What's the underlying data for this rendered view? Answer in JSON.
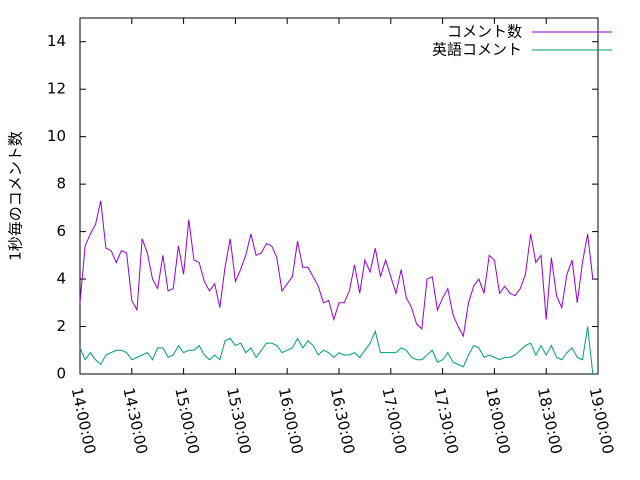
{
  "chart_data": {
    "type": "line",
    "ylabel": "1秒毎のコメント数",
    "x": [
      "14:00:00",
      "14:03:00",
      "14:06:00",
      "14:09:00",
      "14:12:00",
      "14:15:00",
      "14:18:00",
      "14:21:00",
      "14:24:00",
      "14:27:00",
      "14:30:00",
      "14:33:00",
      "14:36:00",
      "14:39:00",
      "14:42:00",
      "14:45:00",
      "14:48:00",
      "14:51:00",
      "14:54:00",
      "14:57:00",
      "15:00:00",
      "15:03:00",
      "15:06:00",
      "15:09:00",
      "15:12:00",
      "15:15:00",
      "15:18:00",
      "15:21:00",
      "15:24:00",
      "15:27:00",
      "15:30:00",
      "15:33:00",
      "15:36:00",
      "15:39:00",
      "15:42:00",
      "15:45:00",
      "15:48:00",
      "15:51:00",
      "15:54:00",
      "15:57:00",
      "16:00:00",
      "16:03:00",
      "16:06:00",
      "16:09:00",
      "16:12:00",
      "16:15:00",
      "16:18:00",
      "16:21:00",
      "16:24:00",
      "16:27:00",
      "16:30:00",
      "16:33:00",
      "16:36:00",
      "16:39:00",
      "16:42:00",
      "16:45:00",
      "16:48:00",
      "16:51:00",
      "16:54:00",
      "16:57:00",
      "17:00:00",
      "17:03:00",
      "17:06:00",
      "17:09:00",
      "17:12:00",
      "17:15:00",
      "17:18:00",
      "17:21:00",
      "17:24:00",
      "17:27:00",
      "17:30:00",
      "17:33:00",
      "17:36:00",
      "17:39:00",
      "17:42:00",
      "17:45:00",
      "17:48:00",
      "17:51:00",
      "17:54:00",
      "17:57:00",
      "18:00:00",
      "18:03:00",
      "18:06:00",
      "18:09:00",
      "18:12:00",
      "18:15:00",
      "18:18:00",
      "18:21:00",
      "18:24:00",
      "18:27:00",
      "18:30:00",
      "18:33:00",
      "18:36:00",
      "18:39:00",
      "18:42:00",
      "18:45:00",
      "18:48:00",
      "18:51:00",
      "18:54:00",
      "18:57:00"
    ],
    "series": [
      {
        "name": "コメント数",
        "color": "#9400d3",
        "values": [
          3.0,
          5.4,
          5.9,
          6.3,
          7.3,
          5.3,
          5.2,
          4.7,
          5.2,
          5.1,
          3.1,
          2.7,
          5.7,
          5.1,
          4.0,
          3.6,
          5.0,
          3.5,
          3.6,
          5.4,
          4.2,
          6.5,
          4.8,
          4.7,
          3.9,
          3.5,
          3.8,
          2.8,
          4.5,
          5.7,
          3.9,
          4.4,
          5.0,
          5.9,
          5.0,
          5.1,
          5.5,
          5.4,
          4.9,
          3.5,
          3.8,
          4.1,
          5.6,
          4.5,
          4.5,
          4.1,
          3.7,
          3.0,
          3.1,
          2.3,
          3.0,
          3.0,
          3.5,
          4.6,
          3.4,
          4.8,
          4.3,
          5.3,
          4.1,
          4.8,
          4.1,
          3.4,
          4.4,
          3.2,
          2.8,
          2.1,
          1.9,
          4.0,
          4.1,
          2.7,
          3.2,
          3.6,
          2.5,
          2.0,
          1.6,
          3.0,
          3.7,
          4.0,
          3.4,
          5.0,
          4.8,
          3.4,
          3.7,
          3.4,
          3.3,
          3.6,
          4.2,
          5.9,
          4.7,
          5.0,
          2.3,
          4.9,
          3.3,
          2.8,
          4.2,
          4.8,
          3.0,
          4.7,
          5.9,
          4.0
        ]
      },
      {
        "name": "英語コメント",
        "color": "#009e73",
        "values": [
          1.1,
          0.6,
          0.9,
          0.6,
          0.4,
          0.8,
          0.9,
          1.0,
          1.0,
          0.9,
          0.6,
          0.7,
          0.8,
          0.9,
          0.6,
          1.1,
          1.1,
          0.7,
          0.8,
          1.2,
          0.9,
          1.0,
          1.0,
          1.2,
          0.8,
          0.6,
          0.8,
          0.6,
          1.4,
          1.5,
          1.2,
          1.3,
          0.9,
          1.1,
          0.7,
          1.0,
          1.3,
          1.3,
          1.2,
          0.9,
          1.0,
          1.1,
          1.5,
          1.1,
          1.4,
          1.2,
          0.8,
          1.0,
          0.9,
          0.7,
          0.9,
          0.8,
          0.8,
          0.9,
          0.7,
          1.0,
          1.3,
          1.8,
          0.9,
          0.9,
          0.9,
          0.9,
          1.1,
          1.0,
          0.7,
          0.6,
          0.6,
          0.8,
          1.0,
          0.5,
          0.6,
          0.9,
          0.5,
          0.4,
          0.3,
          0.8,
          1.2,
          1.1,
          0.7,
          0.8,
          0.7,
          0.6,
          0.7,
          0.7,
          0.8,
          1.0,
          1.2,
          1.3,
          0.8,
          1.2,
          0.8,
          1.2,
          0.7,
          0.6,
          0.9,
          1.1,
          0.7,
          0.6,
          2.0,
          0.0
        ]
      }
    ],
    "xlim": [
      "14:00:00",
      "19:00:00"
    ],
    "xticks": [
      "14:00:00",
      "14:30:00",
      "15:00:00",
      "15:30:00",
      "16:00:00",
      "16:30:00",
      "17:00:00",
      "17:30:00",
      "18:00:00",
      "18:30:00",
      "19:00:00"
    ],
    "ylim": [
      0,
      15
    ],
    "yticks": [
      0,
      2,
      4,
      6,
      8,
      10,
      12,
      14
    ],
    "legend": "top-right"
  }
}
